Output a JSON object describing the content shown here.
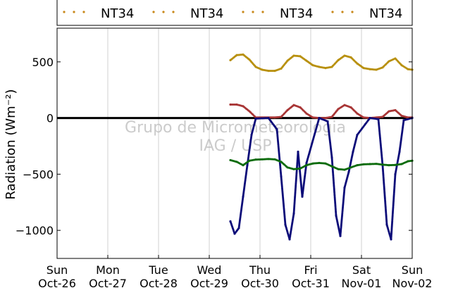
{
  "chart_data": {
    "type": "scatter",
    "ylabel": "Radiation (Wm⁻²)",
    "ylim": [
      -1250,
      800
    ],
    "yticks": [
      500,
      0,
      -500,
      -1000
    ],
    "ytick_labels": [
      "500",
      "0",
      "−500",
      "−1000"
    ],
    "x_range": [
      "2014-10-26",
      "2014-11-02"
    ],
    "x_ticks": [
      {
        "date": "2014-10-26",
        "day": "Sun",
        "label": "Oct-26"
      },
      {
        "date": "2014-10-27",
        "day": "Mon",
        "label": "Oct-27"
      },
      {
        "date": "2014-10-28",
        "day": "Tue",
        "label": "Oct-28"
      },
      {
        "date": "2014-10-29",
        "day": "Wed",
        "label": "Oct-29"
      },
      {
        "date": "2014-10-30",
        "day": "Thu",
        "label": "Oct-30"
      },
      {
        "date": "2014-10-31",
        "day": "Fri",
        "label": "Oct-31"
      },
      {
        "date": "2014-11-01",
        "day": "Sat",
        "label": "Nov-01"
      },
      {
        "date": "2014-11-02",
        "day": "Sun",
        "label": "Nov-02"
      }
    ],
    "grid": "vertical",
    "zero_line": true,
    "legend": {
      "placement": "top",
      "entries": [
        {
          "label": "NT34",
          "color": "#c8881a"
        },
        {
          "label": "NT34",
          "color": "#c8881a"
        },
        {
          "label": "NT34",
          "color": "#c8881a"
        },
        {
          "label": "NT34",
          "color": "#c8881a"
        }
      ]
    },
    "series": [
      {
        "color": "#b8900e",
        "x": [
          "2014-10-29 10:00",
          "2014-10-29 13:00",
          "2014-10-29 16:00",
          "2014-10-29 19:00",
          "2014-10-29 22:00",
          "2014-10-30 01:00",
          "2014-10-30 04:00",
          "2014-10-30 07:00",
          "2014-10-30 10:00",
          "2014-10-30 13:00",
          "2014-10-30 16:00",
          "2014-10-30 19:00",
          "2014-10-30 22:00",
          "2014-10-31 01:00",
          "2014-10-31 04:00",
          "2014-10-31 07:00",
          "2014-10-31 10:00",
          "2014-10-31 13:00",
          "2014-10-31 16:00",
          "2014-10-31 19:00",
          "2014-10-31 22:00",
          "2014-11-01 01:00",
          "2014-11-01 04:00",
          "2014-11-01 07:00",
          "2014-11-01 10:00",
          "2014-11-01 13:00",
          "2014-11-01 16:00",
          "2014-11-01 19:00",
          "2014-11-01 22:00",
          "2014-11-02 00:00"
        ],
        "y": [
          515,
          560,
          565,
          520,
          455,
          430,
          420,
          420,
          440,
          510,
          555,
          550,
          510,
          470,
          455,
          445,
          455,
          515,
          555,
          540,
          485,
          445,
          435,
          430,
          450,
          505,
          530,
          470,
          435,
          430
        ]
      },
      {
        "color": "#a83535",
        "x": [
          "2014-10-29 10:00",
          "2014-10-29 13:00",
          "2014-10-29 16:00",
          "2014-10-29 19:00",
          "2014-10-29 22:00",
          "2014-10-30 01:00",
          "2014-10-30 04:00",
          "2014-10-30 07:00",
          "2014-10-30 10:00",
          "2014-10-30 13:00",
          "2014-10-30 16:00",
          "2014-10-30 19:00",
          "2014-10-30 22:00",
          "2014-10-31 01:00",
          "2014-10-31 04:00",
          "2014-10-31 07:00",
          "2014-10-31 10:00",
          "2014-10-31 13:00",
          "2014-10-31 16:00",
          "2014-10-31 19:00",
          "2014-10-31 22:00",
          "2014-11-01 01:00",
          "2014-11-01 04:00",
          "2014-11-01 07:00",
          "2014-11-01 10:00",
          "2014-11-01 13:00",
          "2014-11-01 16:00",
          "2014-11-01 19:00",
          "2014-11-01 22:00",
          "2014-11-02 00:00"
        ],
        "y": [
          120,
          120,
          105,
          60,
          5,
          5,
          5,
          5,
          10,
          70,
          115,
          95,
          40,
          5,
          0,
          0,
          10,
          80,
          115,
          95,
          40,
          5,
          0,
          5,
          10,
          60,
          70,
          20,
          5,
          5
        ]
      },
      {
        "color": "#0a0a78",
        "x": [
          "2014-10-29 10:00",
          "2014-10-29 12:00",
          "2014-10-29 14:00",
          "2014-10-29 16:00",
          "2014-10-29 18:00",
          "2014-10-29 20:00",
          "2014-10-29 22:00",
          "2014-10-30 04:00",
          "2014-10-30 08:00",
          "2014-10-30 10:00",
          "2014-10-30 12:00",
          "2014-10-30 14:00",
          "2014-10-30 16:00",
          "2014-10-30 18:00",
          "2014-10-30 20:00",
          "2014-10-30 22:00",
          "2014-10-31 04:00",
          "2014-10-31 08:00",
          "2014-10-31 10:00",
          "2014-10-31 12:00",
          "2014-10-31 14:00",
          "2014-10-31 16:00",
          "2014-10-31 18:00",
          "2014-10-31 20:00",
          "2014-10-31 22:00",
          "2014-11-01 04:00",
          "2014-11-01 08:00",
          "2014-11-01 10:00",
          "2014-11-01 12:00",
          "2014-11-01 14:00",
          "2014-11-01 16:00",
          "2014-11-01 18:00",
          "2014-11-01 20:00",
          "2014-11-02 00:00"
        ],
        "y": [
          -920,
          -1030,
          -980,
          -700,
          -420,
          -150,
          -5,
          0,
          -100,
          -520,
          -950,
          -1080,
          -850,
          -300,
          -700,
          -400,
          0,
          -30,
          -350,
          -870,
          -1050,
          -620,
          -480,
          -300,
          -150,
          0,
          -10,
          -420,
          -950,
          -1080,
          -500,
          -300,
          -20,
          0
        ]
      },
      {
        "color": "#0b6b0b",
        "x": [
          "2014-10-29 10:00",
          "2014-10-29 13:00",
          "2014-10-29 16:00",
          "2014-10-29 19:00",
          "2014-10-29 22:00",
          "2014-10-30 01:00",
          "2014-10-30 04:00",
          "2014-10-30 07:00",
          "2014-10-30 10:00",
          "2014-10-30 13:00",
          "2014-10-30 16:00",
          "2014-10-30 19:00",
          "2014-10-30 22:00",
          "2014-10-31 01:00",
          "2014-10-31 04:00",
          "2014-10-31 07:00",
          "2014-10-31 10:00",
          "2014-10-31 13:00",
          "2014-10-31 16:00",
          "2014-10-31 19:00",
          "2014-10-31 22:00",
          "2014-11-01 01:00",
          "2014-11-01 04:00",
          "2014-11-01 07:00",
          "2014-11-01 10:00",
          "2014-11-01 13:00",
          "2014-11-01 16:00",
          "2014-11-01 19:00",
          "2014-11-01 22:00",
          "2014-11-02 00:00"
        ],
        "y": [
          -375,
          -390,
          -420,
          -380,
          -370,
          -368,
          -365,
          -368,
          -390,
          -440,
          -455,
          -450,
          -420,
          -405,
          -400,
          -405,
          -430,
          -455,
          -460,
          -440,
          -420,
          -412,
          -410,
          -408,
          -415,
          -420,
          -418,
          -410,
          -385,
          -380
        ]
      }
    ]
  },
  "watermark": {
    "line1": "Grupo de Micrometeorologia",
    "line2": "IAG / USP"
  }
}
